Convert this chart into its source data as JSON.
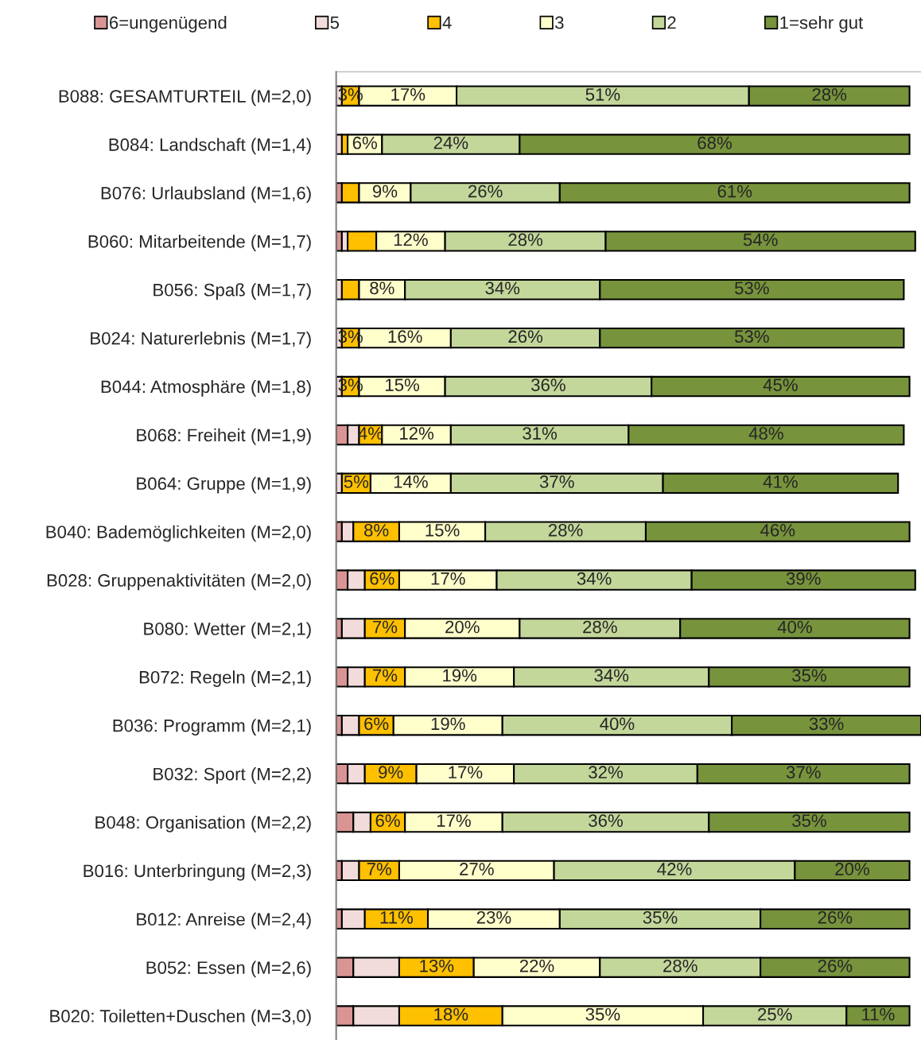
{
  "chart_data": {
    "type": "bar",
    "orientation": "horizontal",
    "stacked": true,
    "legend": "top",
    "grid": false,
    "tick_labels": "y",
    "xlim": [
      0,
      102
    ],
    "categories": [
      "B088: GESAMTURTEIL (M=2,0)",
      "B084: Landschaft (M=1,4)",
      "B076: Urlaubsland (M=1,6)",
      "B060: Mitarbeitende (M=1,7)",
      "B056: Spaß (M=1,7)",
      "B024: Naturerlebnis (M=1,7)",
      "B044: Atmosphäre (M=1,8)",
      "B068: Freiheit (M=1,9)",
      "B064: Gruppe (M=1,9)",
      "B040: Bademöglichkeiten (M=2,0)",
      "B028: Gruppenaktivitäten (M=2,0)",
      "B080: Wetter (M=2,1)",
      "B072: Regeln (M=2,1)",
      "B036: Programm (M=2,1)",
      "B032: Sport (M=2,2)",
      "B048: Organisation (M=2,2)",
      "B016: Unterbringung (M=2,3)",
      "B012: Anreise (M=2,4)",
      "B052: Essen (M=2,6)",
      "B020: Toiletten+Duschen (M=3,0)"
    ],
    "series": [
      {
        "name": "6=ungenügend",
        "color": "#d99594",
        "values": [
          null,
          null,
          1,
          1,
          null,
          null,
          null,
          2,
          null,
          1,
          2,
          1,
          2,
          1,
          2,
          3,
          1,
          1,
          3,
          3
        ]
      },
      {
        "name": "5",
        "color": "#f2dcdb",
        "values": [
          1,
          1,
          null,
          1,
          1,
          1,
          1,
          2,
          1,
          2,
          3,
          4,
          3,
          3,
          3,
          3,
          3,
          4,
          8,
          8
        ]
      },
      {
        "name": "4",
        "color": "#ffc000",
        "values": [
          3,
          1,
          3,
          5,
          3,
          3,
          3,
          4,
          5,
          8,
          6,
          7,
          7,
          6,
          9,
          6,
          7,
          11,
          13,
          18
        ],
        "value_labels": [
          "3%",
          null,
          null,
          null,
          null,
          "3%",
          "3%",
          "4%",
          "5%",
          "8%",
          "6%",
          "7%",
          "7%",
          "6%",
          "9%",
          "6%",
          "7%",
          "11%",
          "13%",
          "18%"
        ]
      },
      {
        "name": "3",
        "color": "#ffffcc",
        "values": [
          17,
          6,
          9,
          12,
          8,
          16,
          15,
          12,
          14,
          15,
          17,
          20,
          19,
          19,
          17,
          17,
          27,
          23,
          22,
          35
        ],
        "value_labels": [
          "17%",
          "6%",
          "9%",
          "12%",
          "8%",
          "16%",
          "15%",
          "12%",
          "14%",
          "15%",
          "17%",
          "20%",
          "19%",
          "19%",
          "17%",
          "17%",
          "27%",
          "23%",
          "22%",
          "35%"
        ]
      },
      {
        "name": "2",
        "color": "#c4d79b",
        "values": [
          51,
          24,
          26,
          28,
          34,
          26,
          36,
          31,
          37,
          28,
          34,
          28,
          34,
          40,
          32,
          36,
          42,
          35,
          28,
          25
        ],
        "value_labels": [
          "51%",
          "24%",
          "26%",
          "28%",
          "34%",
          "26%",
          "36%",
          "31%",
          "37%",
          "28%",
          "34%",
          "28%",
          "34%",
          "40%",
          "32%",
          "36%",
          "42%",
          "35%",
          "28%",
          "25%"
        ]
      },
      {
        "name": "1=sehr gut",
        "color": "#77933c",
        "values": [
          28,
          68,
          61,
          54,
          53,
          53,
          45,
          48,
          41,
          46,
          39,
          40,
          35,
          33,
          37,
          35,
          20,
          26,
          26,
          11
        ],
        "value_labels": [
          "28%",
          "68%",
          "61%",
          "54%",
          "53%",
          "53%",
          "45%",
          "48%",
          "41%",
          "46%",
          "39%",
          "40%",
          "35%",
          "33%",
          "37%",
          "35%",
          "20%",
          "26%",
          "26%",
          "11%"
        ]
      }
    ]
  }
}
